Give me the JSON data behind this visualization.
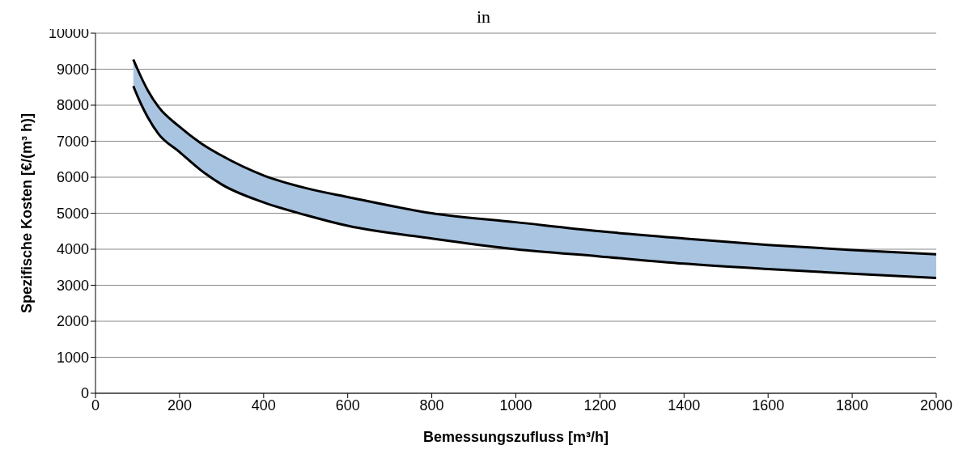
{
  "chart_data": {
    "type": "line",
    "title": "in",
    "xlabel": "Bemessungszufluss [m³/h]",
    "ylabel": "Spezifische  Kosten  [€/(m³ h)]",
    "x": [
      90,
      100,
      125,
      150,
      200,
      250,
      300,
      400,
      500,
      600,
      800,
      1000,
      1200,
      1400,
      1600,
      1800,
      2000
    ],
    "series": [
      {
        "color": "#000000",
        "values": [
          9270,
          9000,
          8400,
          7950,
          7400,
          6950,
          6600,
          6050,
          5700,
          5450,
          5000,
          4750,
          4500,
          4300,
          4120,
          3980,
          3860
        ],
        "lower": [
          8530,
          8250,
          7650,
          7200,
          6700,
          6200,
          5800,
          5300,
          4950,
          4650,
          4300,
          4000,
          3800,
          3600,
          3450,
          3320,
          3200
        ],
        "upper": [
          9270,
          9000,
          8400,
          7950,
          7400,
          6950,
          6600,
          6050,
          5700,
          5450,
          5000,
          4750,
          4500,
          4300,
          4120,
          3980,
          3860
        ]
      },
      {
        "color": "#000000",
        "values": [
          8530,
          8250,
          7650,
          7200,
          6700,
          6200,
          5800,
          5300,
          4950,
          4650,
          4300,
          4000,
          3800,
          3600,
          3450,
          3320,
          3200
        ]
      }
    ],
    "xlim": [
      0,
      2000
    ],
    "xticks": [
      0,
      200,
      400,
      600,
      800,
      1000,
      1200,
      1400,
      1600,
      1800,
      2000
    ],
    "ylim": [
      0,
      10000
    ],
    "yticks": [
      0,
      1000,
      2000,
      3000,
      4000,
      5000,
      6000,
      7000,
      8000,
      9000,
      10000
    ],
    "grid": "y",
    "marker": "none",
    "line_style": "solid"
  }
}
